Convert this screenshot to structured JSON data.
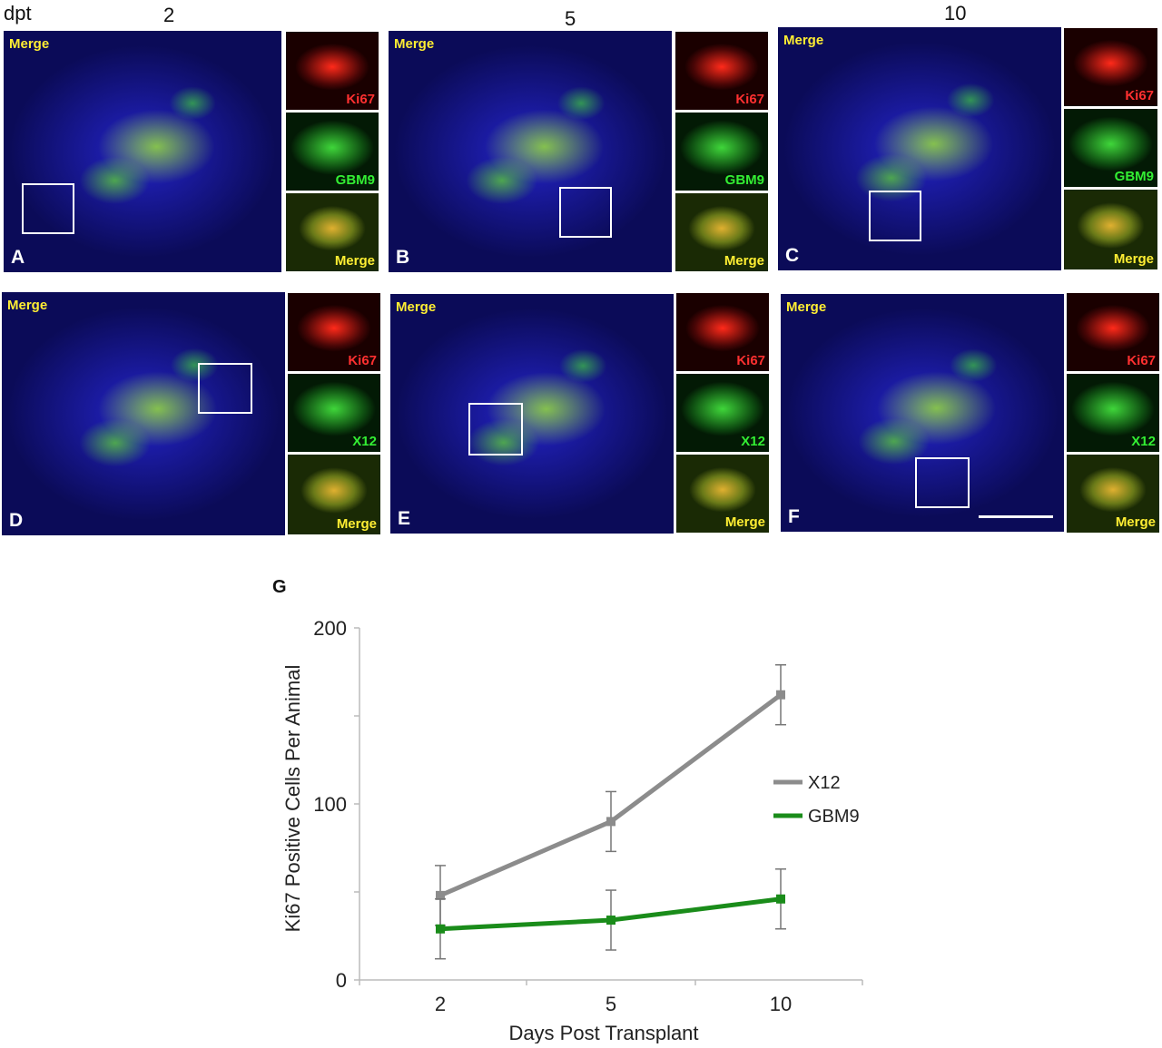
{
  "figure": {
    "header_dpt": "dpt",
    "columns": [
      "2",
      "5",
      "10"
    ],
    "merge_label": "Merge",
    "panels": [
      {
        "letter": "A",
        "tiles": [
          "Ki67",
          "GBM9",
          "Merge"
        ]
      },
      {
        "letter": "B",
        "tiles": [
          "Ki67",
          "GBM9",
          "Merge"
        ]
      },
      {
        "letter": "C",
        "tiles": [
          "Ki67",
          "GBM9",
          "Merge"
        ]
      },
      {
        "letter": "D",
        "tiles": [
          "Ki67",
          "X12",
          "Merge"
        ]
      },
      {
        "letter": "E",
        "tiles": [
          "Ki67",
          "X12",
          "Merge"
        ]
      },
      {
        "letter": "F",
        "tiles": [
          "Ki67",
          "X12",
          "Merge"
        ]
      }
    ],
    "panel_g_letter": "G"
  },
  "chart_data": {
    "type": "line",
    "title": "",
    "xlabel": "Days Post Transplant",
    "ylabel": "Ki67 Positive Cells Per Animal",
    "categories": [
      "2",
      "5",
      "10"
    ],
    "ylim": [
      0,
      200
    ],
    "yticks": [
      0,
      100,
      200
    ],
    "legend_position": "right",
    "series": [
      {
        "name": "X12",
        "color": "#8c8c8c",
        "values": [
          48,
          90,
          162
        ],
        "errors": [
          17,
          17,
          17
        ]
      },
      {
        "name": "GBM9",
        "color": "#1a8c1a",
        "values": [
          29,
          34,
          46
        ],
        "errors": [
          17,
          17,
          17
        ]
      }
    ]
  }
}
